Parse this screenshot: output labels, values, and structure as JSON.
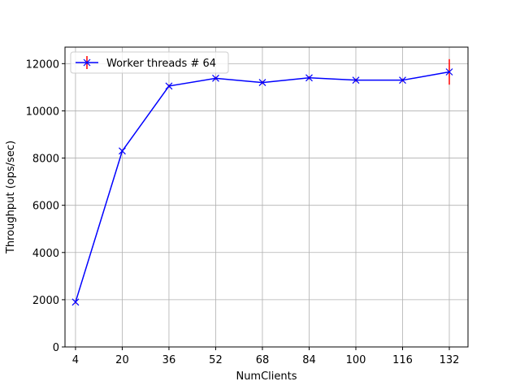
{
  "chart_data": {
    "type": "line",
    "title": "",
    "xlabel": "NumClients",
    "ylabel": "Throughput (ops/sec)",
    "x": [
      4,
      20,
      36,
      52,
      68,
      84,
      100,
      116,
      132
    ],
    "xticks": [
      "4",
      "20",
      "36",
      "52",
      "68",
      "84",
      "100",
      "116",
      "132"
    ],
    "yticks": [
      "0",
      "2000",
      "4000",
      "6000",
      "8000",
      "10000",
      "12000"
    ],
    "xlim": [
      0.4,
      138.4
    ],
    "ylim": [
      0,
      12700
    ],
    "grid": true,
    "legend_position": "top-left",
    "series": [
      {
        "name": "Worker threads # 64",
        "color": "#0000ff",
        "marker": "x",
        "y": [
          1900,
          8300,
          11050,
          11380,
          11200,
          11400,
          11300,
          11300,
          11650
        ],
        "error": [
          60,
          60,
          60,
          60,
          60,
          60,
          60,
          60,
          540
        ],
        "error_color": "#ff0000"
      }
    ]
  }
}
